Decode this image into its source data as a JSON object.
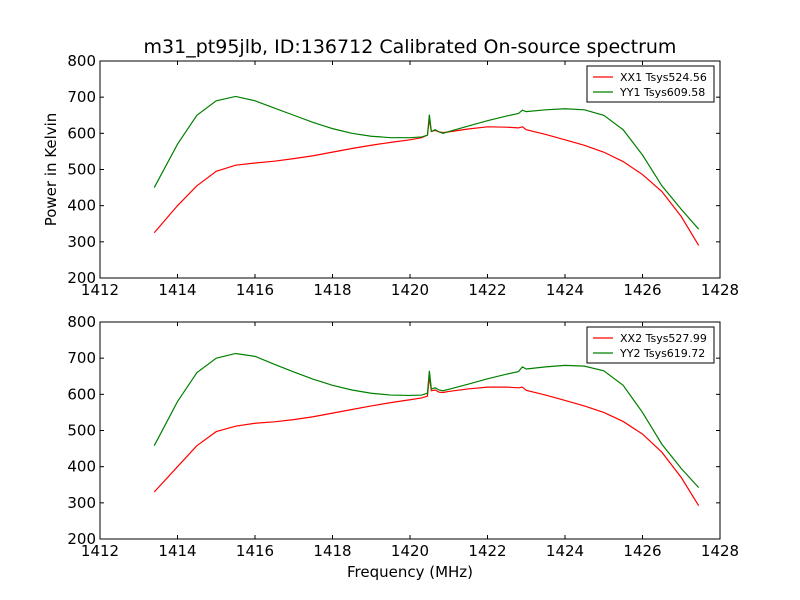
{
  "title": "m31_pt95jlb, ID:136712 Calibrated On-source spectrum",
  "colors": {
    "xx": "#ff0000",
    "yy": "#008000"
  },
  "chart_data": [
    {
      "type": "line",
      "xlabel": "",
      "ylabel": "Power in Kelvin",
      "xlim": [
        1412,
        1428
      ],
      "ylim": [
        200,
        800
      ],
      "xticks": [
        "1412",
        "1414",
        "1416",
        "1418",
        "1420",
        "1422",
        "1424",
        "1426",
        "1428"
      ],
      "yticks": [
        "200",
        "300",
        "400",
        "500",
        "600",
        "700",
        "800"
      ],
      "legend_position": "top-right",
      "series": [
        {
          "name": "XX1 Tsys524.56",
          "color": "#ff0000",
          "x": [
            1413.4,
            1414,
            1414.5,
            1415,
            1415.5,
            1416,
            1416.5,
            1417,
            1417.5,
            1418,
            1418.5,
            1419,
            1419.5,
            1420,
            1420.3,
            1420.45,
            1420.5,
            1420.55,
            1420.65,
            1420.75,
            1420.85,
            1421,
            1421.5,
            1422,
            1422.5,
            1422.8,
            1422.9,
            1423,
            1423.5,
            1424,
            1424.5,
            1425,
            1425.5,
            1426,
            1426.5,
            1427,
            1427.45
          ],
          "y": [
            325,
            400,
            455,
            495,
            512,
            518,
            523,
            530,
            538,
            548,
            558,
            567,
            575,
            582,
            588,
            595,
            640,
            605,
            608,
            604,
            602,
            604,
            612,
            618,
            617,
            615,
            618,
            610,
            597,
            582,
            567,
            548,
            522,
            486,
            439,
            370,
            290
          ]
        },
        {
          "name": "YY1 Tsys609.58",
          "color": "#008000",
          "x": [
            1413.4,
            1414,
            1414.5,
            1415,
            1415.5,
            1416,
            1416.5,
            1417,
            1417.5,
            1418,
            1418.5,
            1419,
            1419.5,
            1420,
            1420.3,
            1420.45,
            1420.5,
            1420.55,
            1420.65,
            1420.75,
            1420.85,
            1421,
            1421.5,
            1422,
            1422.5,
            1422.8,
            1422.9,
            1423,
            1423.5,
            1424,
            1424.5,
            1425,
            1425.5,
            1426,
            1426.5,
            1427,
            1427.45
          ],
          "y": [
            450,
            570,
            650,
            690,
            702,
            690,
            670,
            650,
            630,
            613,
            600,
            592,
            588,
            588,
            590,
            595,
            652,
            605,
            610,
            604,
            600,
            605,
            620,
            635,
            648,
            655,
            664,
            660,
            665,
            668,
            665,
            650,
            610,
            540,
            455,
            390,
            335
          ]
        }
      ]
    },
    {
      "type": "line",
      "xlabel": "Frequency (MHz)",
      "ylabel": "",
      "xlim": [
        1412,
        1428
      ],
      "ylim": [
        200,
        800
      ],
      "xticks": [
        "1412",
        "1414",
        "1416",
        "1418",
        "1420",
        "1422",
        "1424",
        "1426",
        "1428"
      ],
      "yticks": [
        "200",
        "300",
        "400",
        "500",
        "600",
        "700",
        "800"
      ],
      "legend_position": "top-right",
      "series": [
        {
          "name": "XX2 Tsys527.99",
          "color": "#ff0000",
          "x": [
            1413.4,
            1414,
            1414.5,
            1415,
            1415.5,
            1416,
            1416.5,
            1417,
            1417.5,
            1418,
            1418.5,
            1419,
            1419.5,
            1420,
            1420.3,
            1420.45,
            1420.5,
            1420.55,
            1420.65,
            1420.75,
            1420.85,
            1421,
            1421.5,
            1422,
            1422.5,
            1422.8,
            1422.9,
            1423,
            1423.5,
            1424,
            1424.5,
            1425,
            1425.5,
            1426,
            1426.5,
            1427,
            1427.45
          ],
          "y": [
            330,
            400,
            458,
            497,
            512,
            520,
            524,
            530,
            538,
            548,
            558,
            568,
            577,
            585,
            590,
            595,
            650,
            610,
            612,
            606,
            605,
            608,
            615,
            620,
            620,
            618,
            620,
            611,
            598,
            583,
            568,
            550,
            525,
            490,
            440,
            370,
            292
          ]
        },
        {
          "name": "YY2 Tsys619.72",
          "color": "#008000",
          "x": [
            1413.4,
            1414,
            1414.5,
            1415,
            1415.5,
            1416,
            1416.5,
            1417,
            1417.5,
            1418,
            1418.5,
            1419,
            1419.5,
            1420,
            1420.3,
            1420.45,
            1420.5,
            1420.55,
            1420.65,
            1420.75,
            1420.85,
            1421,
            1421.5,
            1422,
            1422.5,
            1422.8,
            1422.9,
            1423,
            1423.5,
            1424,
            1424.5,
            1425,
            1425.5,
            1426,
            1426.5,
            1427,
            1427.45
          ],
          "y": [
            458,
            580,
            660,
            700,
            713,
            705,
            683,
            662,
            642,
            625,
            612,
            603,
            598,
            597,
            598,
            603,
            665,
            615,
            618,
            612,
            610,
            614,
            628,
            643,
            656,
            663,
            676,
            670,
            676,
            680,
            678,
            665,
            625,
            550,
            462,
            395,
            342
          ]
        }
      ]
    }
  ]
}
